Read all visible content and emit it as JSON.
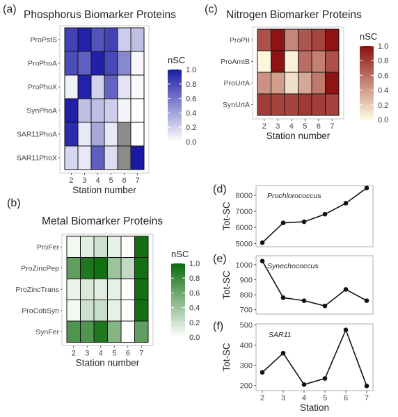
{
  "chart_data": [
    {
      "id": "phosphorus",
      "type": "heatmap",
      "panel_label": "(a)",
      "title": "Phosphorus Biomarker Proteins",
      "xlabel": "Station number",
      "x": [
        "2",
        "3",
        "4",
        "5",
        "6",
        "7"
      ],
      "rows": [
        "ProPstS",
        "ProPhoA",
        "ProPhoX",
        "SynPhoA",
        "SAR11PhoA",
        "SAR11PhoX"
      ],
      "values": [
        [
          0.82,
          0.97,
          0.75,
          0.82,
          0.22,
          0.28
        ],
        [
          0.78,
          0.7,
          0.97,
          0.8,
          0.52,
          0.04
        ],
        [
          0.06,
          0.97,
          0.2,
          0.68,
          0.12,
          0.02
        ],
        [
          0.98,
          0.28,
          0.28,
          0.22,
          0.05,
          0.0
        ],
        [
          0.92,
          0.1,
          0.38,
          0.1,
          null,
          0.0
        ],
        [
          0.18,
          0.1,
          0.7,
          0.15,
          null,
          1.0
        ]
      ],
      "missing_color": "#8c8c8c",
      "legend_title": "nSC",
      "legend_ticks": [
        "1.0",
        "0.8",
        "0.6",
        "0.4",
        "0.2",
        "0.0"
      ],
      "color_low": "#ffffff",
      "color_high": "#1a1aa6"
    },
    {
      "id": "nitrogen",
      "type": "heatmap",
      "panel_label": "(c)",
      "title": "Nitrogen Biomarker Proteins",
      "xlabel": "Station number",
      "x": [
        "2",
        "3",
        "4",
        "5",
        "6",
        "7"
      ],
      "rows": [
        "ProPII",
        "ProAmtB",
        "ProUrtA",
        "SynUrtA"
      ],
      "values": [
        [
          0.72,
          0.98,
          0.5,
          0.7,
          0.78,
          0.98
        ],
        [
          0.02,
          0.98,
          0.04,
          0.6,
          0.52,
          0.72
        ],
        [
          0.45,
          0.4,
          0.12,
          0.35,
          0.55,
          0.98
        ],
        [
          0.8,
          0.78,
          0.78,
          0.82,
          0.8,
          0.78
        ]
      ],
      "legend_title": "nSC",
      "legend_ticks": [
        "1.0",
        "0.8",
        "0.6",
        "0.4",
        "0.2",
        "0.0"
      ],
      "color_low": "#fffbe0",
      "color_high": "#8b0f0f"
    },
    {
      "id": "metal",
      "type": "heatmap",
      "panel_label": "(b)",
      "title": "Metal Biomarker Proteins",
      "xlabel": "Station number",
      "x": [
        "2",
        "3",
        "4",
        "5",
        "6",
        "7"
      ],
      "rows": [
        "ProFer",
        "ProZincPep",
        "ProZincTrans",
        "ProCobSyn",
        "SynFer"
      ],
      "values": [
        [
          0.05,
          0.12,
          0.2,
          0.1,
          0.0,
          0.97
        ],
        [
          0.65,
          0.92,
          0.97,
          0.4,
          0.25,
          0.97
        ],
        [
          0.08,
          0.15,
          0.12,
          0.1,
          0.0,
          0.97
        ],
        [
          0.05,
          0.2,
          0.22,
          0.1,
          0.0,
          0.97
        ],
        [
          0.72,
          0.72,
          0.92,
          0.5,
          0.0,
          0.65
        ]
      ],
      "legend_title": "nSC",
      "legend_ticks": [
        "1.0",
        "0.8",
        "0.6",
        "0.4",
        "0.2",
        "0.0"
      ],
      "color_low": "#ffffff",
      "color_high": "#0b6b0b"
    },
    {
      "id": "prochlorococcus",
      "type": "line",
      "panel_label": "(d)",
      "organism": "Prochlorococcus",
      "ylabel": "Tot-SC",
      "x": [
        2,
        3,
        4,
        5,
        6,
        7
      ],
      "y": [
        5050,
        6280,
        6350,
        6820,
        7500,
        8450
      ],
      "ylim": [
        4800,
        8600
      ],
      "yticks": [
        5000,
        6000,
        7000,
        8000
      ]
    },
    {
      "id": "synechococcus",
      "type": "line",
      "panel_label": "(e)",
      "organism": "Synechococcus",
      "ylabel": "Tot-SC",
      "x": [
        2,
        3,
        4,
        5,
        6,
        7
      ],
      "y": [
        1025,
        780,
        760,
        725,
        835,
        760
      ],
      "ylim": [
        670,
        1060
      ],
      "yticks": [
        700,
        800,
        900,
        1000
      ]
    },
    {
      "id": "sar11",
      "type": "line",
      "panel_label": "(f)",
      "organism": "SAR11",
      "ylabel": "Tot-SC",
      "xlabel": "Station",
      "x": [
        2,
        3,
        4,
        5,
        6,
        7
      ],
      "y": [
        265,
        360,
        205,
        235,
        475,
        198
      ],
      "ylim": [
        175,
        505
      ],
      "yticks": [
        200,
        300,
        400,
        500
      ],
      "xticks": [
        "2",
        "3",
        "4",
        "5",
        "6",
        "7"
      ]
    }
  ]
}
